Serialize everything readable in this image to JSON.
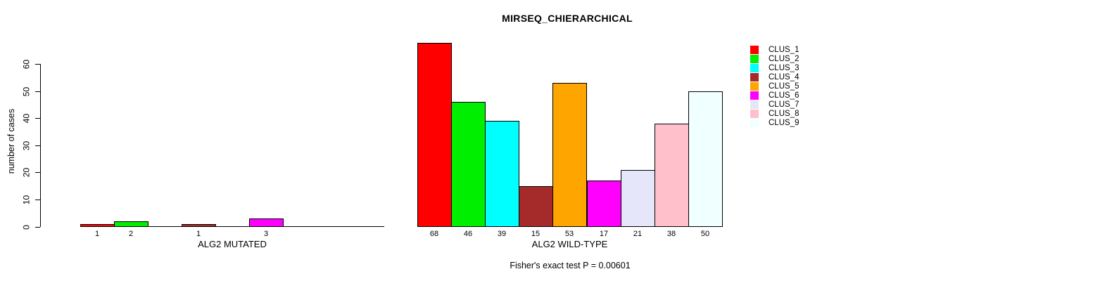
{
  "title": "MIRSEQ_CHIERARCHICAL",
  "subtitle": "Fisher's exact test P = 0.00601",
  "y_axis": {
    "label": "number of cases",
    "ylim": [
      0,
      60
    ],
    "ticks": [
      0,
      10,
      20,
      30,
      40,
      50,
      60
    ]
  },
  "legend": {
    "position": "top-right",
    "items": [
      {
        "label": "CLUS_1",
        "color": "#FF0000"
      },
      {
        "label": "CLUS_2",
        "color": "#00EE00"
      },
      {
        "label": "CLUS_3",
        "color": "#00FFFF"
      },
      {
        "label": "CLUS_4",
        "color": "#A52A2A"
      },
      {
        "label": "CLUS_5",
        "color": "#FFA500"
      },
      {
        "label": "CLUS_6",
        "color": "#FF00FF"
      },
      {
        "label": "CLUS_7",
        "color": "#E6E6FA"
      },
      {
        "label": "CLUS_8",
        "color": "#FFC0CB"
      },
      {
        "label": "CLUS_9",
        "color": "#F0FFFF"
      }
    ]
  },
  "chart_data": [
    {
      "type": "bar",
      "panel_label": "ALG2 MUTATED",
      "categories": [
        "CLUS_1",
        "CLUS_2",
        "CLUS_3",
        "CLUS_4",
        "CLUS_5",
        "CLUS_6",
        "CLUS_7",
        "CLUS_8",
        "CLUS_9"
      ],
      "values": [
        1,
        2,
        0,
        1,
        0,
        3,
        0,
        0,
        0
      ],
      "value_labels_shown": [
        1,
        2,
        1,
        3
      ],
      "ylim": [
        0,
        60
      ],
      "grid": false,
      "bar_labels": "shown only for non-zero bars"
    },
    {
      "type": "bar",
      "panel_label": "ALG2 WILD-TYPE",
      "categories": [
        "CLUS_1",
        "CLUS_2",
        "CLUS_3",
        "CLUS_4",
        "CLUS_5",
        "CLUS_6",
        "CLUS_7",
        "CLUS_8",
        "CLUS_9"
      ],
      "values": [
        68,
        46,
        39,
        15,
        53,
        17,
        21,
        38,
        50
      ],
      "ylim": [
        0,
        60
      ],
      "grid": false,
      "bar_labels": "shown under every bar"
    }
  ]
}
